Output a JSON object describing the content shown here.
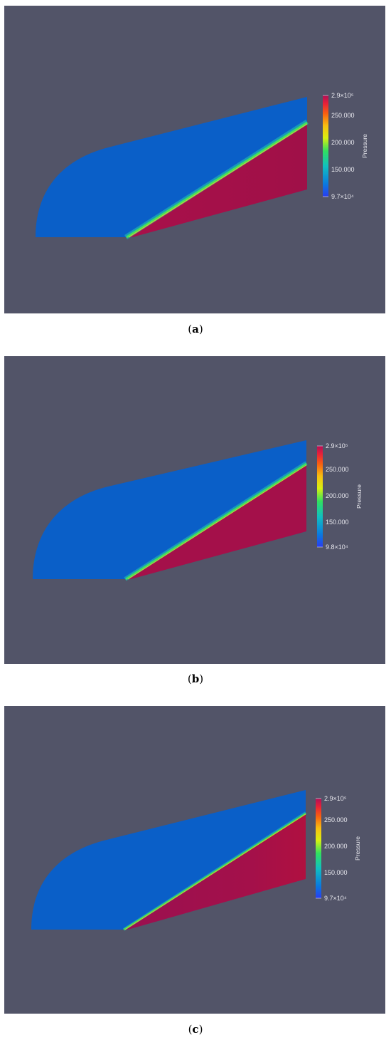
{
  "panels": [
    {
      "caption_open": "(",
      "caption_letter": "a",
      "caption_close": ")",
      "colorbar": {
        "title": "Pressure",
        "max_label": "2.9×10⁵",
        "ticks": [
          "250.000",
          "200.000",
          "150.000"
        ],
        "min_label": "9.7×10⁴"
      }
    },
    {
      "caption_open": "(",
      "caption_letter": "b",
      "caption_close": ")",
      "colorbar": {
        "title": "Pressure",
        "max_label": "2.9×10⁵",
        "ticks": [
          "250.000",
          "200.000",
          "150.000"
        ],
        "min_label": "9.8×10⁴"
      }
    },
    {
      "caption_open": "(",
      "caption_letter": "c",
      "caption_close": ")",
      "colorbar": {
        "title": "Pressure",
        "max_label": "2.9×10⁵",
        "ticks": [
          "250.000",
          "200.000",
          "150.000"
        ],
        "min_label": "9.7×10⁴"
      }
    }
  ],
  "colors": {
    "background": "#525468",
    "low_pressure": "#0a5fc8",
    "high_pressure": "#a81248",
    "shock": "#40e060"
  }
}
